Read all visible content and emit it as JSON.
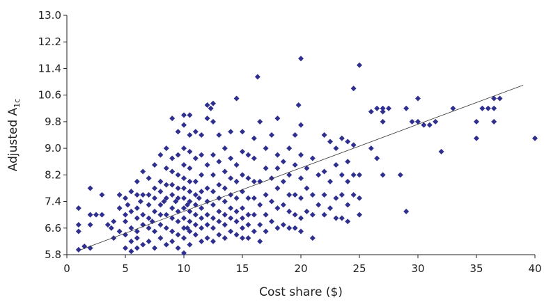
{
  "chart_data": {
    "type": "scatter",
    "title": "",
    "xlabel": "Cost share ($)",
    "ylabel_main": "Adjusted A",
    "ylabel_sub": "1c",
    "xlim": [
      0,
      40
    ],
    "ylim": [
      5.8,
      13.0
    ],
    "x_ticks": [
      "0",
      "5",
      "10",
      "15",
      "20",
      "25",
      "30",
      "35",
      "40"
    ],
    "y_ticks": [
      "5.8",
      "6.6",
      "7.4",
      "8.2",
      "9.0",
      "9.8",
      "10.6",
      "11.4",
      "12.2",
      "13.0"
    ],
    "x_tick_values": [
      0,
      5,
      10,
      15,
      20,
      25,
      30,
      35,
      40
    ],
    "y_tick_values": [
      5.8,
      6.6,
      7.4,
      8.2,
      9.0,
      9.8,
      10.6,
      11.4,
      12.2,
      13.0
    ],
    "grid": false,
    "legend": "none",
    "point_color": "#2e2f8f",
    "trendline": {
      "x": [
        1.2,
        39.0
      ],
      "y": [
        5.95,
        10.9
      ]
    },
    "points": [
      [
        1,
        5.95
      ],
      [
        1,
        6.5
      ],
      [
        1,
        6.7
      ],
      [
        1,
        7.2
      ],
      [
        1.5,
        6.05
      ],
      [
        2,
        6.0
      ],
      [
        2,
        6.7
      ],
      [
        2,
        7.0
      ],
      [
        2,
        7.8
      ],
      [
        2.5,
        7.0
      ],
      [
        3,
        7.0
      ],
      [
        3,
        7.6
      ],
      [
        3.5,
        6.7
      ],
      [
        3.8,
        6.6
      ],
      [
        4,
        6.3
      ],
      [
        4,
        6.8
      ],
      [
        4.5,
        6.5
      ],
      [
        4.5,
        7.2
      ],
      [
        4.5,
        7.6
      ],
      [
        5,
        6.0
      ],
      [
        5,
        6.4
      ],
      [
        5,
        6.8
      ],
      [
        5,
        7.0
      ],
      [
        5,
        7.5
      ],
      [
        5.2,
        7.3
      ],
      [
        5.5,
        5.9
      ],
      [
        5.5,
        6.2
      ],
      [
        5.5,
        6.6
      ],
      [
        5.5,
        7.1
      ],
      [
        5.5,
        7.7
      ],
      [
        6,
        6.0
      ],
      [
        6,
        6.3
      ],
      [
        6,
        6.5
      ],
      [
        6,
        6.9
      ],
      [
        6,
        7.2
      ],
      [
        6,
        7.6
      ],
      [
        6,
        8.0
      ],
      [
        6.3,
        7.4
      ],
      [
        6.5,
        6.1
      ],
      [
        6.5,
        6.7
      ],
      [
        6.5,
        7.0
      ],
      [
        6.5,
        7.6
      ],
      [
        6.5,
        8.3
      ],
      [
        7,
        6.2
      ],
      [
        7,
        6.6
      ],
      [
        7,
        6.9
      ],
      [
        7,
        7.3
      ],
      [
        7,
        7.6
      ],
      [
        7,
        8.1
      ],
      [
        7.3,
        6.8
      ],
      [
        7.5,
        6.0
      ],
      [
        7.5,
        6.5
      ],
      [
        7.5,
        7.1
      ],
      [
        7.5,
        7.5
      ],
      [
        7.5,
        7.8
      ],
      [
        7.5,
        8.5
      ],
      [
        8,
        6.3
      ],
      [
        8,
        6.7
      ],
      [
        8,
        7.0
      ],
      [
        8,
        7.3
      ],
      [
        8,
        7.7
      ],
      [
        8,
        8.0
      ],
      [
        8,
        8.8
      ],
      [
        8.3,
        7.4
      ],
      [
        8.5,
        6.1
      ],
      [
        8.5,
        6.6
      ],
      [
        8.5,
        7.0
      ],
      [
        8.5,
        7.5
      ],
      [
        8.5,
        7.9
      ],
      [
        8.5,
        8.4
      ],
      [
        8.5,
        9.0
      ],
      [
        9,
        6.2
      ],
      [
        9,
        6.5
      ],
      [
        9,
        6.9
      ],
      [
        9,
        7.2
      ],
      [
        9,
        7.6
      ],
      [
        9,
        7.9
      ],
      [
        9,
        8.3
      ],
      [
        9,
        8.7
      ],
      [
        9,
        9.9
      ],
      [
        9.3,
        7.4
      ],
      [
        9.5,
        6.0
      ],
      [
        9.5,
        6.4
      ],
      [
        9.5,
        6.8
      ],
      [
        9.5,
        7.1
      ],
      [
        9.5,
        7.5
      ],
      [
        9.5,
        7.8
      ],
      [
        9.5,
        8.2
      ],
      [
        9.5,
        8.8
      ],
      [
        9.5,
        9.5
      ],
      [
        10,
        5.85
      ],
      [
        10,
        6.3
      ],
      [
        10,
        6.6
      ],
      [
        10,
        6.9
      ],
      [
        10,
        7.2
      ],
      [
        10,
        7.5
      ],
      [
        10,
        7.8
      ],
      [
        10,
        8.1
      ],
      [
        10,
        8.5
      ],
      [
        10,
        9.0
      ],
      [
        10,
        9.7
      ],
      [
        10,
        10.0
      ],
      [
        10.3,
        6.6
      ],
      [
        10.3,
        7.3
      ],
      [
        10.5,
        6.1
      ],
      [
        10.5,
        6.5
      ],
      [
        10.5,
        6.8
      ],
      [
        10.5,
        7.1
      ],
      [
        10.5,
        7.4
      ],
      [
        10.5,
        7.7
      ],
      [
        10.5,
        8.0
      ],
      [
        10.5,
        8.4
      ],
      [
        10.5,
        8.9
      ],
      [
        10.5,
        9.4
      ],
      [
        10.5,
        10.0
      ],
      [
        11,
        6.4
      ],
      [
        11,
        6.7
      ],
      [
        11,
        7.0
      ],
      [
        11,
        7.3
      ],
      [
        11,
        7.6
      ],
      [
        11,
        8.0
      ],
      [
        11,
        8.7
      ],
      [
        11,
        9.5
      ],
      [
        11.3,
        7.5
      ],
      [
        11.5,
        6.2
      ],
      [
        11.5,
        6.6
      ],
      [
        11.5,
        6.9
      ],
      [
        11.5,
        7.2
      ],
      [
        11.5,
        7.7
      ],
      [
        11.5,
        8.2
      ],
      [
        11.5,
        8.8
      ],
      [
        11.5,
        9.4
      ],
      [
        12,
        6.3
      ],
      [
        12,
        6.7
      ],
      [
        12,
        7.0
      ],
      [
        12,
        7.4
      ],
      [
        12,
        7.8
      ],
      [
        12,
        8.5
      ],
      [
        12,
        9.9
      ],
      [
        12,
        10.3
      ],
      [
        12.3,
        10.2
      ],
      [
        12.5,
        6.2
      ],
      [
        12.5,
        6.6
      ],
      [
        12.5,
        6.9
      ],
      [
        12.5,
        7.3
      ],
      [
        12.5,
        7.7
      ],
      [
        12.5,
        8.2
      ],
      [
        12.5,
        8.8
      ],
      [
        12.5,
        9.8
      ],
      [
        12.5,
        10.35
      ],
      [
        13,
        6.4
      ],
      [
        13,
        6.8
      ],
      [
        13,
        7.1
      ],
      [
        13,
        7.5
      ],
      [
        13,
        7.9
      ],
      [
        13,
        8.6
      ],
      [
        13,
        9.4
      ],
      [
        13.5,
        6.3
      ],
      [
        13.5,
        6.7
      ],
      [
        13.5,
        7.0
      ],
      [
        13.5,
        7.4
      ],
      [
        13.5,
        7.8
      ],
      [
        13.5,
        8.3
      ],
      [
        13.5,
        9.0
      ],
      [
        14,
        6.5
      ],
      [
        14,
        6.9
      ],
      [
        14,
        7.2
      ],
      [
        14,
        7.6
      ],
      [
        14,
        8.1
      ],
      [
        14,
        8.7
      ],
      [
        14,
        9.5
      ],
      [
        14.5,
        6.4
      ],
      [
        14.5,
        6.8
      ],
      [
        14.5,
        7.1
      ],
      [
        14.5,
        7.5
      ],
      [
        14.5,
        8.0
      ],
      [
        14.5,
        8.5
      ],
      [
        14.5,
        10.5
      ],
      [
        15,
        6.3
      ],
      [
        15,
        6.6
      ],
      [
        15,
        6.9
      ],
      [
        15,
        7.2
      ],
      [
        15,
        7.7
      ],
      [
        15,
        8.2
      ],
      [
        15,
        8.9
      ],
      [
        15,
        9.5
      ],
      [
        15.5,
        6.3
      ],
      [
        15.5,
        6.7
      ],
      [
        15.5,
        7.0
      ],
      [
        15.5,
        7.5
      ],
      [
        15.5,
        8.1
      ],
      [
        15.5,
        8.8
      ],
      [
        16,
        6.5
      ],
      [
        16,
        7.0
      ],
      [
        16,
        7.5
      ],
      [
        16,
        8.0
      ],
      [
        16,
        8.7
      ],
      [
        16,
        9.3
      ],
      [
        16.3,
        11.15
      ],
      [
        16.5,
        6.2
      ],
      [
        16.5,
        6.7
      ],
      [
        16.5,
        7.3
      ],
      [
        16.5,
        8.0
      ],
      [
        16.5,
        9.8
      ],
      [
        17,
        6.5
      ],
      [
        17,
        7.0
      ],
      [
        17,
        7.6
      ],
      [
        17,
        8.4
      ],
      [
        17,
        9.0
      ],
      [
        17.5,
        6.8
      ],
      [
        17.5,
        7.4
      ],
      [
        17.5,
        8.1
      ],
      [
        17.5,
        9.4
      ],
      [
        18,
        6.6
      ],
      [
        18,
        7.2
      ],
      [
        18,
        7.8
      ],
      [
        18,
        8.4
      ],
      [
        18,
        8.8
      ],
      [
        18,
        9.9
      ],
      [
        18.5,
        6.7
      ],
      [
        18.5,
        7.3
      ],
      [
        18.5,
        8.0
      ],
      [
        18.5,
        8.6
      ],
      [
        19,
        6.6
      ],
      [
        19,
        7.1
      ],
      [
        19,
        7.6
      ],
      [
        19,
        8.2
      ],
      [
        19,
        9.0
      ],
      [
        19.5,
        6.6
      ],
      [
        19.5,
        7.0
      ],
      [
        19.5,
        7.6
      ],
      [
        19.5,
        8.5
      ],
      [
        19.5,
        9.4
      ],
      [
        19.8,
        10.3
      ],
      [
        20,
        6.5
      ],
      [
        20,
        6.9
      ],
      [
        20,
        7.5
      ],
      [
        20,
        8.1
      ],
      [
        20,
        8.8
      ],
      [
        20,
        9.7
      ],
      [
        20,
        11.7
      ],
      [
        20.5,
        7.1
      ],
      [
        20.5,
        7.8
      ],
      [
        20.5,
        8.4
      ],
      [
        21,
        6.3
      ],
      [
        21,
        7.0
      ],
      [
        21,
        7.6
      ],
      [
        21,
        8.7
      ],
      [
        21.5,
        7.3
      ],
      [
        21.5,
        8.2
      ],
      [
        22,
        7.0
      ],
      [
        22,
        7.6
      ],
      [
        22,
        8.3
      ],
      [
        22,
        9.4
      ],
      [
        22.5,
        7.2
      ],
      [
        22.5,
        8.0
      ],
      [
        22.5,
        9.2
      ],
      [
        23,
        6.9
      ],
      [
        23,
        7.5
      ],
      [
        23,
        8.5
      ],
      [
        23,
        9.0
      ],
      [
        23.5,
        6.9
      ],
      [
        23.5,
        7.6
      ],
      [
        23.5,
        8.2
      ],
      [
        23.5,
        9.3
      ],
      [
        24,
        6.8
      ],
      [
        24,
        7.3
      ],
      [
        24,
        8.0
      ],
      [
        24,
        8.6
      ],
      [
        24,
        9.2
      ],
      [
        24.5,
        7.6
      ],
      [
        24.5,
        8.2
      ],
      [
        24.5,
        9.1
      ],
      [
        24.5,
        10.8
      ],
      [
        25,
        7.0
      ],
      [
        25,
        7.5
      ],
      [
        25,
        8.2
      ],
      [
        25,
        11.5
      ],
      [
        26,
        9.0
      ],
      [
        26,
        10.1
      ],
      [
        26.5,
        8.7
      ],
      [
        26.5,
        10.2
      ],
      [
        27,
        8.2
      ],
      [
        27,
        9.8
      ],
      [
        27,
        10.2
      ],
      [
        27,
        10.1
      ],
      [
        27.5,
        10.2
      ],
      [
        28.5,
        8.2
      ],
      [
        29,
        7.1
      ],
      [
        29,
        10.2
      ],
      [
        29.5,
        9.8
      ],
      [
        30,
        9.8
      ],
      [
        30,
        10.5
      ],
      [
        30.5,
        9.7
      ],
      [
        31,
        9.7
      ],
      [
        31.5,
        9.8
      ],
      [
        32,
        8.9
      ],
      [
        33,
        10.2
      ],
      [
        35,
        9.8
      ],
      [
        35,
        9.3
      ],
      [
        35.5,
        10.2
      ],
      [
        36,
        10.2
      ],
      [
        36.5,
        10.5
      ],
      [
        36.5,
        10.2
      ],
      [
        36.5,
        9.8
      ],
      [
        37,
        10.5
      ],
      [
        40,
        9.3
      ]
    ]
  }
}
